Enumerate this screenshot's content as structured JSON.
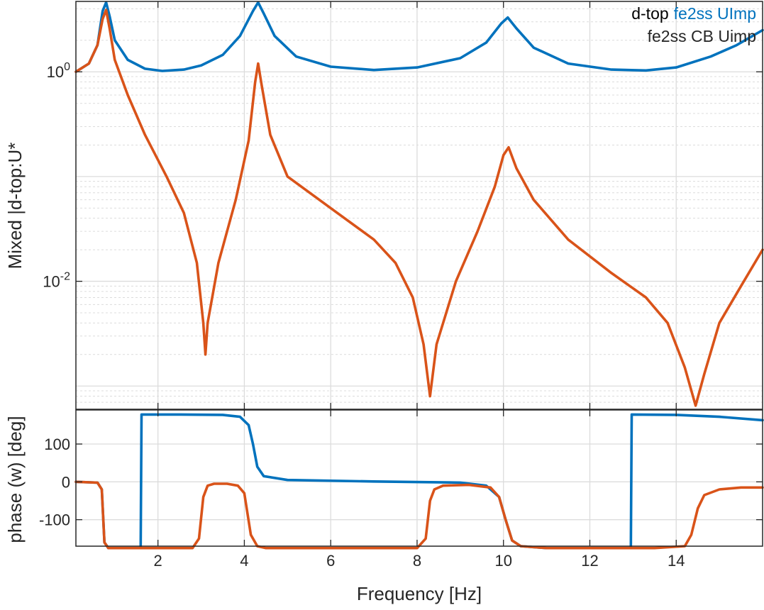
{
  "colors": {
    "series1": "#0072BD",
    "series2": "#D95319",
    "text": "#262626"
  },
  "chart_data": [
    {
      "type": "line",
      "yscale": "log",
      "ylabel": "Mixed |d-top:U*",
      "xlim": [
        0.1,
        16
      ],
      "ylim": [
        0.0006,
        4.7
      ],
      "y_ticks": [
        {
          "value": 1,
          "base": "10",
          "exp": "0"
        },
        {
          "value": 0.01,
          "base": "10",
          "exp": "-2"
        }
      ],
      "grid": "major+minor",
      "legend": {
        "position": "top-right",
        "prefix": "d-top",
        "entries": [
          "fe2ss UImp",
          "fe2ss CB Uimp"
        ]
      },
      "series": [
        {
          "name": "fe2ss UImp",
          "points": [
            [
              0.1,
              1.0
            ],
            [
              0.4,
              1.2
            ],
            [
              0.6,
              1.8
            ],
            [
              0.72,
              3.8
            ],
            [
              0.8,
              4.6
            ],
            [
              0.88,
              3.4
            ],
            [
              1.0,
              2.0
            ],
            [
              1.3,
              1.3
            ],
            [
              1.7,
              1.07
            ],
            [
              2.1,
              1.02
            ],
            [
              2.6,
              1.05
            ],
            [
              3.0,
              1.15
            ],
            [
              3.5,
              1.45
            ],
            [
              3.9,
              2.2
            ],
            [
              4.2,
              3.8
            ],
            [
              4.32,
              4.6
            ],
            [
              4.45,
              3.6
            ],
            [
              4.7,
              2.2
            ],
            [
              5.2,
              1.4
            ],
            [
              6.0,
              1.12
            ],
            [
              7.0,
              1.04
            ],
            [
              8.0,
              1.1
            ],
            [
              9.0,
              1.35
            ],
            [
              9.6,
              1.9
            ],
            [
              9.95,
              2.9
            ],
            [
              10.1,
              3.3
            ],
            [
              10.3,
              2.6
            ],
            [
              10.7,
              1.7
            ],
            [
              11.5,
              1.2
            ],
            [
              12.5,
              1.05
            ],
            [
              13.3,
              1.03
            ],
            [
              14.0,
              1.1
            ],
            [
              14.8,
              1.4
            ],
            [
              15.4,
              1.8
            ],
            [
              16.0,
              2.5
            ]
          ]
        },
        {
          "name": "fe2ss CB Uimp",
          "points": [
            [
              0.1,
              1.0
            ],
            [
              0.4,
              1.2
            ],
            [
              0.6,
              1.8
            ],
            [
              0.72,
              3.2
            ],
            [
              0.8,
              3.9
            ],
            [
              0.88,
              2.6
            ],
            [
              1.0,
              1.3
            ],
            [
              1.3,
              0.6
            ],
            [
              1.7,
              0.25
            ],
            [
              2.2,
              0.1
            ],
            [
              2.6,
              0.045
            ],
            [
              2.9,
              0.015
            ],
            [
              3.05,
              0.004
            ],
            [
              3.1,
              0.002
            ],
            [
              3.15,
              0.004
            ],
            [
              3.4,
              0.015
            ],
            [
              3.8,
              0.06
            ],
            [
              4.1,
              0.22
            ],
            [
              4.25,
              0.8
            ],
            [
              4.32,
              1.2
            ],
            [
              4.4,
              0.75
            ],
            [
              4.6,
              0.25
            ],
            [
              5.0,
              0.1
            ],
            [
              6.0,
              0.05
            ],
            [
              7.0,
              0.025
            ],
            [
              7.5,
              0.015
            ],
            [
              7.9,
              0.007
            ],
            [
              8.15,
              0.0025
            ],
            [
              8.3,
              0.0008
            ],
            [
              8.45,
              0.0025
            ],
            [
              8.9,
              0.01
            ],
            [
              9.4,
              0.03
            ],
            [
              9.8,
              0.08
            ],
            [
              10.0,
              0.16
            ],
            [
              10.12,
              0.19
            ],
            [
              10.3,
              0.12
            ],
            [
              10.7,
              0.06
            ],
            [
              11.5,
              0.025
            ],
            [
              12.5,
              0.012
            ],
            [
              13.3,
              0.007
            ],
            [
              13.8,
              0.004
            ],
            [
              14.2,
              0.0015
            ],
            [
              14.45,
              0.00065
            ],
            [
              14.65,
              0.0013
            ],
            [
              15.0,
              0.004
            ],
            [
              15.5,
              0.009
            ],
            [
              16.0,
              0.02
            ]
          ]
        }
      ]
    },
    {
      "type": "line",
      "ylabel": "phase (w) [deg]",
      "xlabel": "Frequency [Hz]",
      "xlim": [
        0.1,
        16
      ],
      "ylim": [
        -170,
        190
      ],
      "x_ticks": [
        2,
        4,
        6,
        8,
        10,
        12,
        14
      ],
      "y_ticks": [
        100,
        0,
        -100
      ],
      "y_tick_labels": [
        "100",
        "0",
        "-100"
      ],
      "x_tick_labels": [
        "2",
        "4",
        "6",
        "8",
        "10",
        "12",
        "14"
      ],
      "grid": "major",
      "series": [
        {
          "name": "fe2ss UImp",
          "points": [
            [
              0.1,
              0
            ],
            [
              0.6,
              -2
            ],
            [
              0.7,
              -20
            ],
            [
              0.76,
              -160
            ],
            [
              0.85,
              -175
            ],
            [
              1.6,
              -175
            ],
            [
              1.62,
              178
            ],
            [
              2.5,
              178
            ],
            [
              3.5,
              177
            ],
            [
              3.9,
              172
            ],
            [
              4.1,
              150
            ],
            [
              4.2,
              100
            ],
            [
              4.3,
              40
            ],
            [
              4.45,
              15
            ],
            [
              5.0,
              5
            ],
            [
              7.0,
              1
            ],
            [
              9.0,
              -2
            ],
            [
              9.6,
              -10
            ],
            [
              9.9,
              -40
            ],
            [
              10.05,
              -100
            ],
            [
              10.2,
              -155
            ],
            [
              10.4,
              -170
            ],
            [
              11.0,
              -175
            ],
            [
              12.95,
              -175
            ],
            [
              12.97,
              178
            ],
            [
              14.0,
              177
            ],
            [
              15.0,
              172
            ],
            [
              16.0,
              163
            ]
          ]
        },
        {
          "name": "fe2ss CB Uimp",
          "points": [
            [
              0.1,
              0
            ],
            [
              0.6,
              -2
            ],
            [
              0.7,
              -20
            ],
            [
              0.76,
              -160
            ],
            [
              0.85,
              -175
            ],
            [
              2.8,
              -175
            ],
            [
              2.95,
              -150
            ],
            [
              3.05,
              -40
            ],
            [
              3.15,
              -10
            ],
            [
              3.3,
              -5
            ],
            [
              3.6,
              -5
            ],
            [
              3.85,
              -10
            ],
            [
              4.0,
              -30
            ],
            [
              4.15,
              -140
            ],
            [
              4.3,
              -170
            ],
            [
              4.5,
              -175
            ],
            [
              8.0,
              -175
            ],
            [
              8.2,
              -150
            ],
            [
              8.3,
              -50
            ],
            [
              8.4,
              -20
            ],
            [
              8.6,
              -10
            ],
            [
              9.2,
              -8
            ],
            [
              9.7,
              -15
            ],
            [
              9.9,
              -40
            ],
            [
              10.05,
              -100
            ],
            [
              10.2,
              -155
            ],
            [
              10.4,
              -170
            ],
            [
              11.0,
              -175
            ],
            [
              13.5,
              -175
            ],
            [
              14.2,
              -170
            ],
            [
              14.35,
              -140
            ],
            [
              14.5,
              -70
            ],
            [
              14.65,
              -35
            ],
            [
              15.0,
              -20
            ],
            [
              15.5,
              -15
            ],
            [
              16.0,
              -15
            ]
          ]
        }
      ]
    }
  ]
}
